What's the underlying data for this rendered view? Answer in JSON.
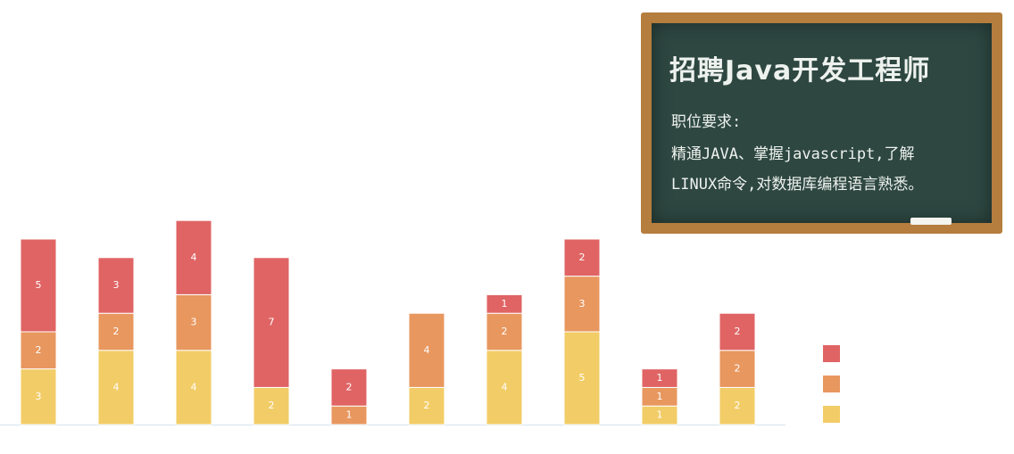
{
  "chart_data": {
    "type": "bar",
    "stacked": true,
    "categories": [
      null,
      null,
      null,
      null,
      null,
      null,
      null,
      null,
      null,
      null
    ],
    "series": [
      {
        "color": "#f2cc66",
        "values": [
          3,
          4,
          4,
          2,
          null,
          2,
          4,
          5,
          1,
          2
        ]
      },
      {
        "color": "#e8975f",
        "values": [
          2,
          2,
          3,
          null,
          1,
          4,
          2,
          3,
          1,
          2
        ]
      },
      {
        "color": "#e06464",
        "values": [
          5,
          3,
          4,
          7,
          2,
          null,
          1,
          2,
          1,
          2
        ]
      }
    ]
  },
  "board": {
    "title": "招聘Java开发工程师",
    "subtitle": "职位要求:",
    "lines": [
      "精通JAVA、掌握javascript,了解",
      "LINUX命令,对数据库编程语言熟悉。"
    ]
  }
}
